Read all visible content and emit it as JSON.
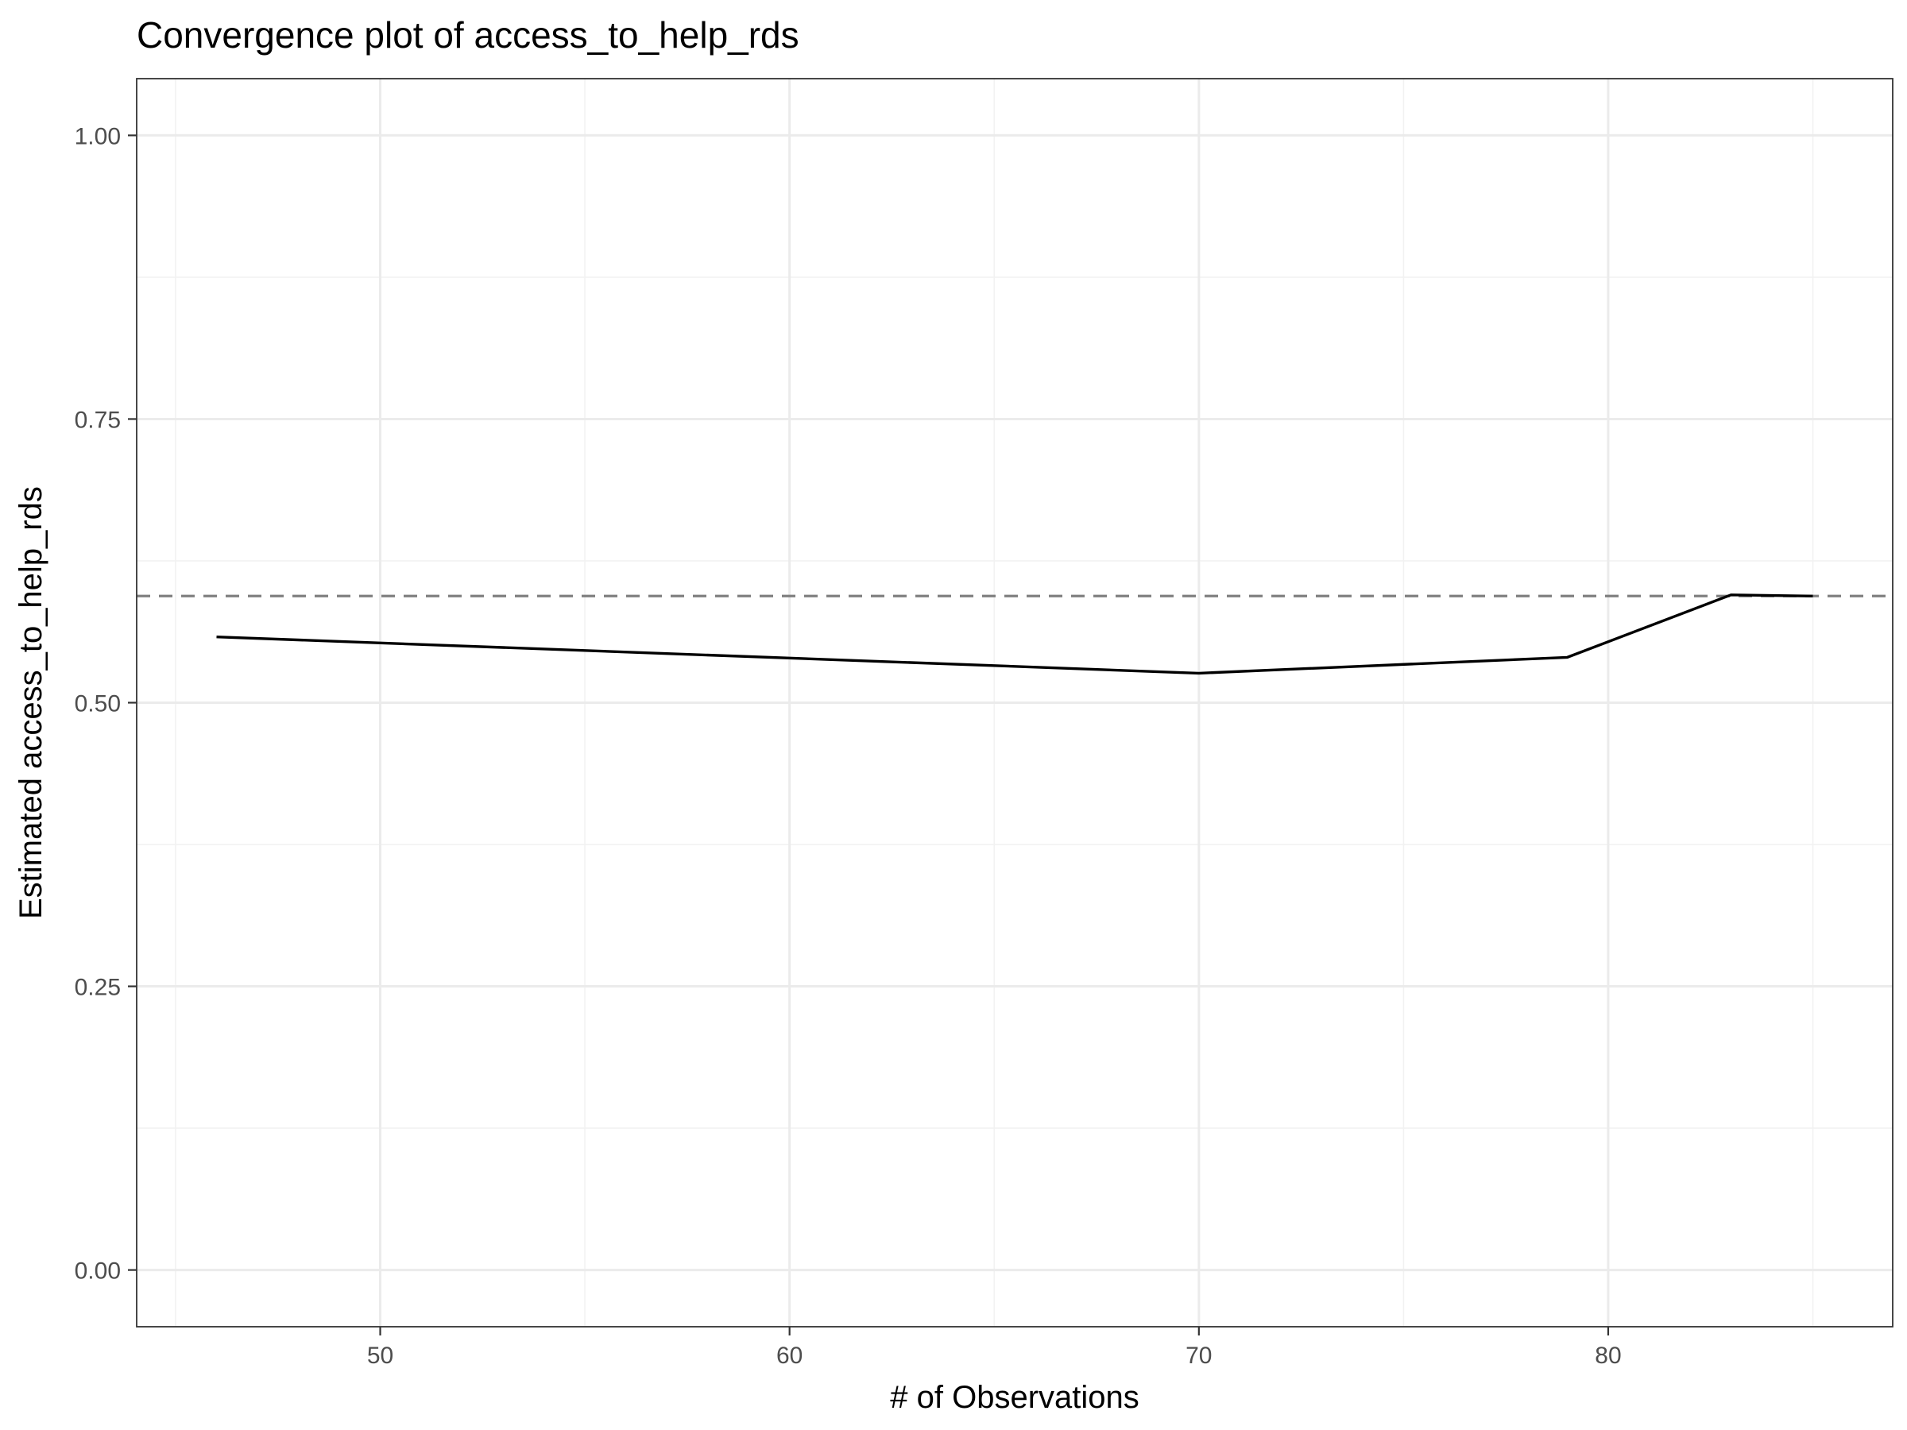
{
  "chart_data": {
    "type": "line",
    "title": "Convergence plot of access_to_help_rds",
    "xlabel": "# of Observations",
    "ylabel": "Estimated access_to_help_rds",
    "xlim": [
      44.05,
      86.95
    ],
    "ylim": [
      -0.05,
      1.05
    ],
    "x_ticks": [
      50,
      60,
      70,
      80
    ],
    "x_tick_labels": [
      "50",
      "60",
      "70",
      "80"
    ],
    "x_minor_ticks": [
      45,
      55,
      65,
      75,
      85
    ],
    "y_ticks": [
      0,
      0.25,
      0.5,
      0.75,
      1.0
    ],
    "y_tick_labels": [
      "0.00",
      "0.25",
      "0.50",
      "0.75",
      "1.00"
    ],
    "y_minor_ticks": [
      0.125,
      0.375,
      0.625,
      0.875
    ],
    "grid": true,
    "legend": "none",
    "series": [
      {
        "x": [
          46,
          70,
          79,
          83,
          85
        ],
        "y": [
          0.558,
          0.526,
          0.54,
          0.595,
          0.594
        ],
        "color": "#000000",
        "style": "solid"
      }
    ],
    "reference_line": {
      "y": 0.594,
      "color": "#808080",
      "style": "dashed"
    }
  }
}
